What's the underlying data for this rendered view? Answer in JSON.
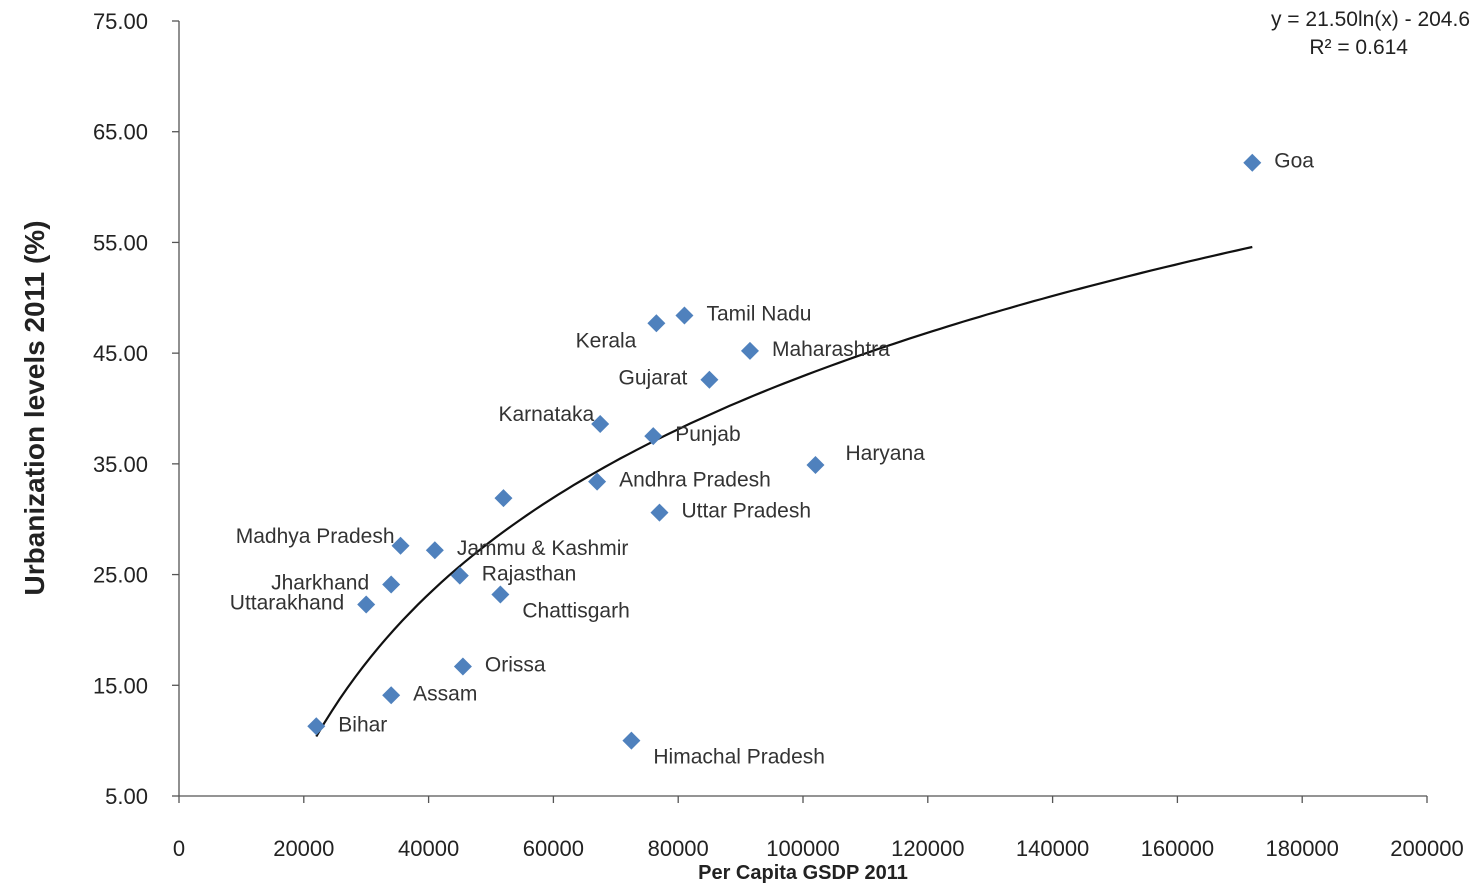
{
  "chart_data": {
    "type": "scatter",
    "title": "",
    "xlabel": "Per Capita GSDP 2011",
    "ylabel": "Urbanization levels 2011 (%)",
    "xlim": [
      0,
      200000
    ],
    "ylim": [
      5,
      75
    ],
    "x_ticks": [
      "0",
      "20000",
      "40000",
      "60000",
      "80000",
      "100000",
      "120000",
      "140000",
      "160000",
      "180000",
      "200000"
    ],
    "y_ticks": [
      "5.00",
      "15.00",
      "25.00",
      "35.00",
      "45.00",
      "55.00",
      "65.00",
      "75.00"
    ],
    "marker_color": "#4f81bd",
    "trendline": {
      "type": "logarithmic",
      "a": 21.5,
      "b": -204.6,
      "x_range": [
        22000,
        172000
      ],
      "color": "#111111"
    },
    "equation": "y = 21.50ln(x) - 204.6",
    "r_squared": "R² = 0.614",
    "points": [
      {
        "label": "Goa",
        "x": 172000,
        "y": 62.2,
        "label_pos": "right"
      },
      {
        "label": "Tamil Nadu",
        "x": 81000,
        "y": 48.4,
        "label_pos": "right"
      },
      {
        "label": "Kerala",
        "x": 76500,
        "y": 47.7,
        "label_pos": "left-below"
      },
      {
        "label": "Maharashtra",
        "x": 91500,
        "y": 45.2,
        "label_pos": "right"
      },
      {
        "label": "Gujarat",
        "x": 85000,
        "y": 42.6,
        "label_pos": "left"
      },
      {
        "label": "Karnataka",
        "x": 67500,
        "y": 38.6,
        "label_pos": "left-above"
      },
      {
        "label": "Punjab",
        "x": 76000,
        "y": 37.5,
        "label_pos": "right"
      },
      {
        "label": "Haryana",
        "x": 102000,
        "y": 34.9,
        "label_pos": "right-above"
      },
      {
        "label": "Andhra Pradesh",
        "x": 67000,
        "y": 33.4,
        "label_pos": "right"
      },
      {
        "label": "",
        "x": 52000,
        "y": 31.9,
        "label_pos": "none"
      },
      {
        "label": "Uttar Pradesh",
        "x": 77000,
        "y": 30.6,
        "label_pos": "right"
      },
      {
        "label": "Madhya Pradesh",
        "x": 35500,
        "y": 27.6,
        "label_pos": "left-above"
      },
      {
        "label": "Jammu & Kashmir",
        "x": 41000,
        "y": 27.2,
        "label_pos": "right"
      },
      {
        "label": "Rajasthan",
        "x": 45000,
        "y": 24.9,
        "label_pos": "right"
      },
      {
        "label": "Jharkhand",
        "x": 34000,
        "y": 24.1,
        "label_pos": "left"
      },
      {
        "label": "Chattisgarh",
        "x": 51500,
        "y": 23.2,
        "label_pos": "right-below"
      },
      {
        "label": "Uttarakhand",
        "x": 30000,
        "y": 22.3,
        "label_pos": "left"
      },
      {
        "label": "Orissa",
        "x": 45500,
        "y": 16.7,
        "label_pos": "right"
      },
      {
        "label": "Assam",
        "x": 34000,
        "y": 14.1,
        "label_pos": "right"
      },
      {
        "label": "Bihar",
        "x": 22000,
        "y": 11.3,
        "label_pos": "right"
      },
      {
        "label": "Himachal Pradesh",
        "x": 72500,
        "y": 10.0,
        "label_pos": "right-below"
      }
    ]
  }
}
